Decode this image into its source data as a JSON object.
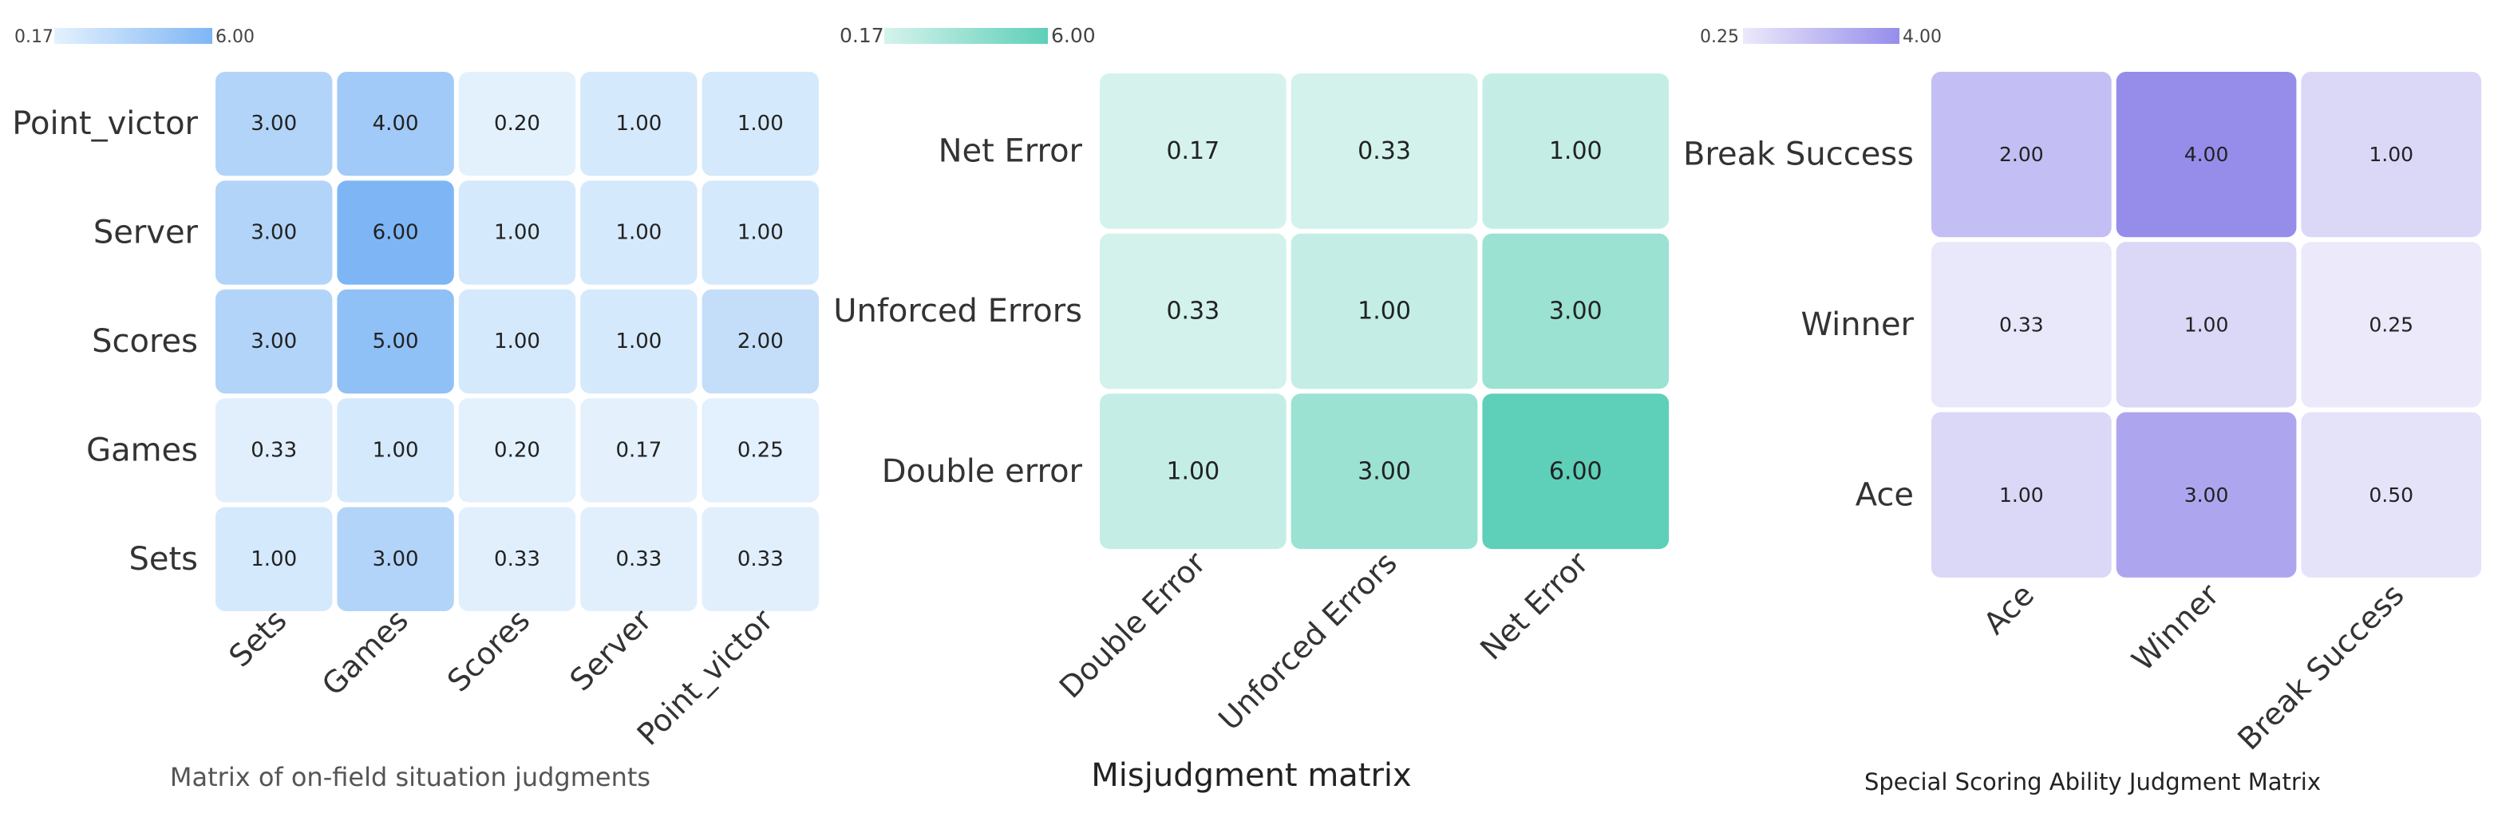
{
  "chart_data": [
    {
      "type": "heatmap",
      "title": "Matrix of on-field situation judgments",
      "rows": [
        "Point_victor",
        "Server",
        "Scores",
        "Games",
        "Sets"
      ],
      "columns": [
        "Sets",
        "Games",
        "Scores",
        "Server",
        "Point_victor"
      ],
      "values": [
        [
          3.0,
          4.0,
          0.2,
          1.0,
          1.0
        ],
        [
          3.0,
          6.0,
          1.0,
          1.0,
          1.0
        ],
        [
          3.0,
          5.0,
          1.0,
          1.0,
          2.0
        ],
        [
          0.33,
          1.0,
          0.2,
          0.17,
          0.25
        ],
        [
          1.0,
          3.0,
          0.33,
          0.33,
          0.33
        ]
      ],
      "color_range": [
        0.17,
        6.0
      ],
      "colorbar_labels": [
        "0.17",
        "6.00"
      ],
      "colors": {
        "low": "#e4f1fd",
        "high": "#7eb6f5"
      }
    },
    {
      "type": "heatmap",
      "title": "Misjudgment matrix",
      "rows": [
        "Net Error",
        "Unforced Errors",
        "Double error"
      ],
      "columns": [
        "Double Error",
        "Unforced Errors",
        "Net Error"
      ],
      "values": [
        [
          0.17,
          0.33,
          1.0
        ],
        [
          0.33,
          1.0,
          3.0
        ],
        [
          1.0,
          3.0,
          6.0
        ]
      ],
      "color_range": [
        0.17,
        6.0
      ],
      "colorbar_labels": [
        "0.17",
        "6.00"
      ],
      "colors": {
        "low": "#d5f3ec",
        "high": "#5ecfb8"
      }
    },
    {
      "type": "heatmap",
      "title": "Special Scoring Ability Judgment Matrix",
      "rows": [
        "Break Success",
        "Winner",
        "Ace"
      ],
      "columns": [
        "Ace",
        "Winner",
        "Break Success"
      ],
      "values": [
        [
          2.0,
          4.0,
          1.0
        ],
        [
          0.33,
          1.0,
          0.25
        ],
        [
          1.0,
          3.0,
          0.5
        ]
      ],
      "color_range": [
        0.25,
        4.0
      ],
      "colorbar_labels": [
        "0.25",
        "4.00"
      ],
      "colors": {
        "low": "#ebe9fa",
        "high": "#968deb"
      }
    }
  ]
}
